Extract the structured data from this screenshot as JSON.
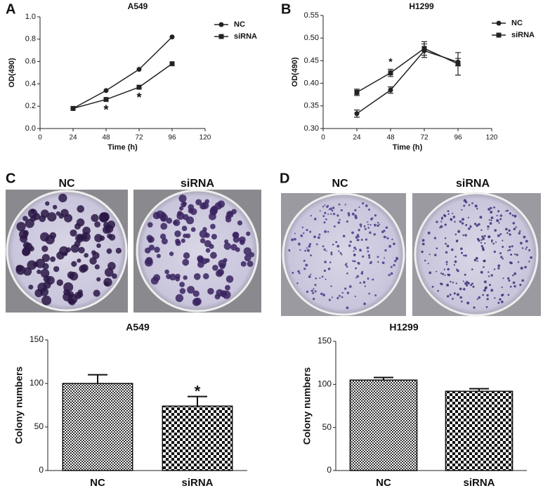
{
  "panels": [
    {
      "letter": "A"
    },
    {
      "letter": "B"
    },
    {
      "letter": "C",
      "photo_labels": [
        "NC",
        "siRNA"
      ]
    },
    {
      "letter": "D",
      "photo_labels": [
        "NC",
        "siRNA"
      ]
    }
  ],
  "chart_data": [
    {
      "type": "line",
      "title": "A549",
      "x_label": "Time (h)",
      "y_label": "OD(490)",
      "x": [
        24,
        48,
        72,
        96
      ],
      "xlim": [
        0,
        120
      ],
      "xticks": [
        0,
        24,
        48,
        72,
        96,
        120
      ],
      "ylim": [
        0,
        1.0
      ],
      "yticks": [
        {
          "value": 0,
          "label": "0.0"
        },
        0.2,
        0.4,
        0.6,
        0.8,
        {
          "value": 1.0,
          "label": "1.0"
        }
      ],
      "series": [
        {
          "name": "NC",
          "color": "#222222",
          "marker": "circle",
          "values": [
            0.18,
            0.34,
            0.53,
            0.82
          ]
        },
        {
          "name": "siRNA",
          "color": "#222222",
          "marker": "square",
          "values": [
            0.18,
            0.26,
            0.37,
            0.58
          ]
        }
      ],
      "annotations": [
        {
          "x": 48,
          "text": "*"
        },
        {
          "x": 72,
          "text": "*"
        }
      ]
    },
    {
      "type": "line",
      "title": "H1299",
      "x_label": "Time (h)",
      "y_label": "OD(490)",
      "x": [
        24,
        48,
        72,
        96
      ],
      "xlim": [
        0,
        120
      ],
      "xticks": [
        0,
        24,
        48,
        72,
        96,
        120
      ],
      "ylim": [
        0.3,
        0.55
      ],
      "yticks": [
        {
          "value": 0.3,
          "label": "0.30"
        },
        0.35,
        {
          "value": 0.4,
          "label": "0.40"
        },
        0.45,
        {
          "value": 0.5,
          "label": "0.50"
        },
        0.55
      ],
      "series": [
        {
          "name": "NC",
          "color": "#222222",
          "marker": "circle",
          "values": [
            0.333,
            0.385,
            0.472,
            0.447
          ],
          "errors": [
            0.008,
            0.007,
            0.015,
            0.008
          ]
        },
        {
          "name": "siRNA",
          "color": "#222222",
          "marker": "square",
          "values": [
            0.38,
            0.423,
            0.477,
            0.443
          ],
          "errors": [
            0.007,
            0.008,
            0.015,
            0.025
          ]
        }
      ],
      "annotations": [
        {
          "x": 48,
          "text": "*"
        }
      ]
    },
    {
      "type": "bar",
      "title": "A549",
      "y_label": "Colony numbers",
      "categories": [
        "NC",
        "siRNA"
      ],
      "values": [
        100,
        74
      ],
      "errors": [
        10,
        11
      ],
      "ylim": [
        0,
        150
      ],
      "yticks": [
        0,
        50,
        100,
        150
      ],
      "annotations": [
        {
          "category": "siRNA",
          "text": "*"
        }
      ]
    },
    {
      "type": "bar",
      "title": "H1299",
      "y_label": "Colony numbers",
      "categories": [
        "NC",
        "siRNA"
      ],
      "values": [
        105,
        92
      ],
      "errors": [
        3,
        3
      ],
      "ylim": [
        0,
        150
      ],
      "yticks": [
        0,
        50,
        100,
        150
      ]
    }
  ]
}
